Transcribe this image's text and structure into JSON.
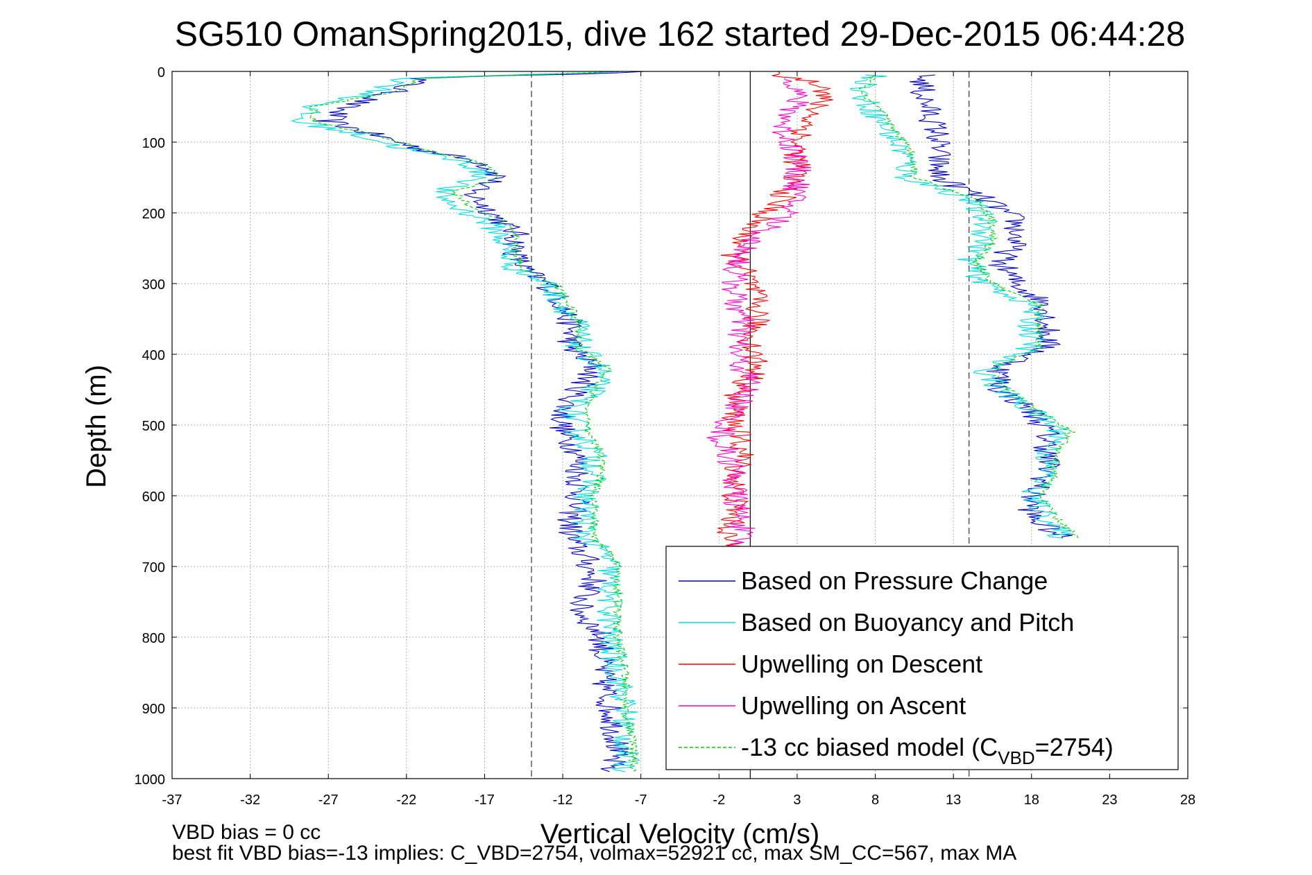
{
  "chart_data": {
    "type": "line",
    "title": "SG510 OmanSpring2015, dive 162 started 29-Dec-2015 06:44:28",
    "xlabel": "Vertical Velocity (cm/s)",
    "ylabel": "Depth (m)",
    "xlim": [
      -37,
      28
    ],
    "ylim": [
      0,
      1000
    ],
    "y_reversed": true,
    "grid": true,
    "x_ticks": [
      "-37",
      "-32",
      "-27",
      "-22",
      "-17",
      "-12",
      "-7",
      "-2",
      "3",
      "8",
      "13",
      "18",
      "23",
      "28"
    ],
    "y_ticks": [
      "0",
      "100",
      "200",
      "300",
      "400",
      "500",
      "600",
      "700",
      "800",
      "900",
      "1000"
    ],
    "zero_line_x": 0,
    "reference_lines_x": [
      -14,
      14
    ],
    "legend_position": "bottom-right",
    "notes": [
      "VBD bias = 0 cc",
      "best fit VBD bias=-13 implies: C_VBD=2754, volmax=52921 cc, max SM_CC=567, max MA"
    ],
    "series": [
      {
        "name": "Based on Pressure Change",
        "color": "#0000cc",
        "style": "solid",
        "descent": [
          [
            -6,
            0
          ],
          [
            -21,
            10
          ],
          [
            -23,
            30
          ],
          [
            -26,
            50
          ],
          [
            -27,
            70
          ],
          [
            -24,
            90
          ],
          [
            -21,
            110
          ],
          [
            -17,
            130
          ],
          [
            -16,
            150
          ],
          [
            -18,
            170
          ],
          [
            -17,
            190
          ],
          [
            -16,
            210
          ],
          [
            -15,
            230
          ],
          [
            -15,
            260
          ],
          [
            -14.5,
            280
          ],
          [
            -13,
            300
          ],
          [
            -12,
            330
          ],
          [
            -11.5,
            360
          ],
          [
            -11.5,
            390
          ],
          [
            -10,
            420
          ],
          [
            -11,
            450
          ],
          [
            -12,
            480
          ],
          [
            -12,
            510
          ],
          [
            -11,
            540
          ],
          [
            -11,
            570
          ],
          [
            -11,
            600
          ],
          [
            -11.5,
            630
          ],
          [
            -11.5,
            660
          ],
          [
            -10.5,
            690
          ],
          [
            -10,
            720
          ],
          [
            -11,
            760
          ],
          [
            -9.5,
            800
          ],
          [
            -9.5,
            850
          ],
          [
            -9,
            900
          ],
          [
            -8.5,
            950
          ],
          [
            -9,
            990
          ]
        ],
        "ascent": [
          [
            11,
            5
          ],
          [
            11,
            30
          ],
          [
            11.5,
            60
          ],
          [
            12,
            90
          ],
          [
            12,
            120
          ],
          [
            12,
            150
          ],
          [
            15,
            180
          ],
          [
            17,
            210
          ],
          [
            17,
            240
          ],
          [
            16,
            270
          ],
          [
            17,
            300
          ],
          [
            19,
            330
          ],
          [
            19,
            360
          ],
          [
            19,
            390
          ],
          [
            16,
            420
          ],
          [
            16,
            450
          ],
          [
            18,
            480
          ],
          [
            19,
            510
          ],
          [
            19,
            540
          ],
          [
            19,
            570
          ],
          [
            18,
            600
          ],
          [
            18,
            630
          ],
          [
            20,
            660
          ]
        ]
      },
      {
        "name": "Based on Buoyancy and Pitch",
        "color": "#00dddd",
        "style": "solid",
        "descent": [
          [
            -8,
            0
          ],
          [
            -22,
            10
          ],
          [
            -24,
            30
          ],
          [
            -28,
            50
          ],
          [
            -29,
            70
          ],
          [
            -25,
            90
          ],
          [
            -22,
            110
          ],
          [
            -18,
            130
          ],
          [
            -17,
            150
          ],
          [
            -20,
            170
          ],
          [
            -19,
            190
          ],
          [
            -17,
            210
          ],
          [
            -16,
            230
          ],
          [
            -15.5,
            260
          ],
          [
            -15,
            280
          ],
          [
            -13,
            300
          ],
          [
            -12,
            330
          ],
          [
            -11,
            360
          ],
          [
            -11,
            390
          ],
          [
            -9.5,
            420
          ],
          [
            -10,
            450
          ],
          [
            -11.5,
            480
          ],
          [
            -11,
            510
          ],
          [
            -10,
            540
          ],
          [
            -10,
            570
          ],
          [
            -10.5,
            600
          ],
          [
            -10.5,
            630
          ],
          [
            -10.5,
            660
          ],
          [
            -9,
            690
          ],
          [
            -9,
            720
          ],
          [
            -9,
            760
          ],
          [
            -9,
            800
          ],
          [
            -8.5,
            850
          ],
          [
            -8,
            900
          ],
          [
            -8,
            950
          ],
          [
            -8,
            990
          ]
        ],
        "ascent": [
          [
            8,
            5
          ],
          [
            7,
            30
          ],
          [
            8,
            60
          ],
          [
            9,
            90
          ],
          [
            10,
            120
          ],
          [
            10,
            150
          ],
          [
            14,
            180
          ],
          [
            15,
            210
          ],
          [
            15,
            240
          ],
          [
            14,
            270
          ],
          [
            15,
            300
          ],
          [
            18,
            330
          ],
          [
            18,
            360
          ],
          [
            18,
            390
          ],
          [
            15,
            420
          ],
          [
            16,
            450
          ],
          [
            18,
            480
          ],
          [
            20,
            510
          ],
          [
            19,
            540
          ],
          [
            19,
            570
          ],
          [
            18,
            600
          ],
          [
            19,
            630
          ],
          [
            20,
            660
          ]
        ]
      },
      {
        "name": "Upwelling on Descent",
        "color": "#ff0000",
        "style": "solid",
        "descent": [
          [
            1,
            0
          ],
          [
            5,
            20
          ],
          [
            4,
            60
          ],
          [
            3,
            100
          ],
          [
            3,
            140
          ],
          [
            2,
            180
          ],
          [
            0,
            220
          ],
          [
            -1,
            260
          ],
          [
            0,
            300
          ],
          [
            0.5,
            340
          ],
          [
            0,
            380
          ],
          [
            0.5,
            420
          ],
          [
            -1,
            460
          ],
          [
            -1,
            500
          ],
          [
            -0.5,
            540
          ],
          [
            -1,
            580
          ],
          [
            -1,
            620
          ],
          [
            -1.5,
            660
          ],
          [
            -1,
            680
          ]
        ]
      },
      {
        "name": "Upwelling on Ascent",
        "color": "#ff00cc",
        "style": "solid",
        "ascent": [
          [
            3,
            10
          ],
          [
            3,
            40
          ],
          [
            2,
            80
          ],
          [
            3,
            120
          ],
          [
            3,
            160
          ],
          [
            2.5,
            200
          ],
          [
            0,
            240
          ],
          [
            -1,
            280
          ],
          [
            -1,
            320
          ],
          [
            -0.5,
            360
          ],
          [
            -1,
            400
          ],
          [
            0,
            440
          ],
          [
            -1,
            480
          ],
          [
            -2,
            520
          ],
          [
            -1,
            560
          ],
          [
            -1,
            600
          ],
          [
            -0.5,
            640
          ],
          [
            -1,
            680
          ]
        ]
      },
      {
        "name": "-13 cc biased model (C_VBD=2754)",
        "legend_main": "-13 cc biased model (C",
        "legend_sub": "VBD",
        "legend_end": "=2754)",
        "color": "#00cc00",
        "style": "dashed",
        "descent": [
          [
            -8,
            0
          ],
          [
            -21,
            10
          ],
          [
            -23,
            30
          ],
          [
            -28,
            50
          ],
          [
            -28,
            70
          ],
          [
            -24,
            90
          ],
          [
            -21,
            110
          ],
          [
            -17,
            130
          ],
          [
            -16,
            150
          ],
          [
            -19,
            170
          ],
          [
            -18,
            190
          ],
          [
            -16,
            210
          ],
          [
            -15,
            230
          ],
          [
            -15,
            260
          ],
          [
            -14.5,
            280
          ],
          [
            -12.5,
            300
          ],
          [
            -11.5,
            330
          ],
          [
            -11,
            360
          ],
          [
            -11,
            390
          ],
          [
            -9,
            420
          ],
          [
            -10,
            450
          ],
          [
            -10.5,
            480
          ],
          [
            -10.5,
            510
          ],
          [
            -9.5,
            540
          ],
          [
            -9.5,
            570
          ],
          [
            -10,
            600
          ],
          [
            -10,
            630
          ],
          [
            -10,
            660
          ],
          [
            -8.5,
            690
          ],
          [
            -8.5,
            720
          ],
          [
            -8.5,
            760
          ],
          [
            -8.5,
            800
          ],
          [
            -8,
            850
          ],
          [
            -8,
            900
          ],
          [
            -7.5,
            950
          ],
          [
            -7.5,
            990
          ]
        ],
        "ascent": [
          [
            8,
            5
          ],
          [
            7,
            30
          ],
          [
            8.5,
            60
          ],
          [
            9.5,
            90
          ],
          [
            10.5,
            120
          ],
          [
            10.5,
            150
          ],
          [
            14.5,
            180
          ],
          [
            15.5,
            210
          ],
          [
            15.5,
            240
          ],
          [
            14.5,
            270
          ],
          [
            15.5,
            300
          ],
          [
            18.5,
            330
          ],
          [
            18.5,
            360
          ],
          [
            18.5,
            390
          ],
          [
            15.5,
            420
          ],
          [
            16.5,
            450
          ],
          [
            18.5,
            480
          ],
          [
            20.5,
            510
          ],
          [
            19.5,
            540
          ],
          [
            19.5,
            570
          ],
          [
            18.5,
            600
          ],
          [
            19.5,
            630
          ],
          [
            21,
            660
          ]
        ]
      }
    ]
  }
}
